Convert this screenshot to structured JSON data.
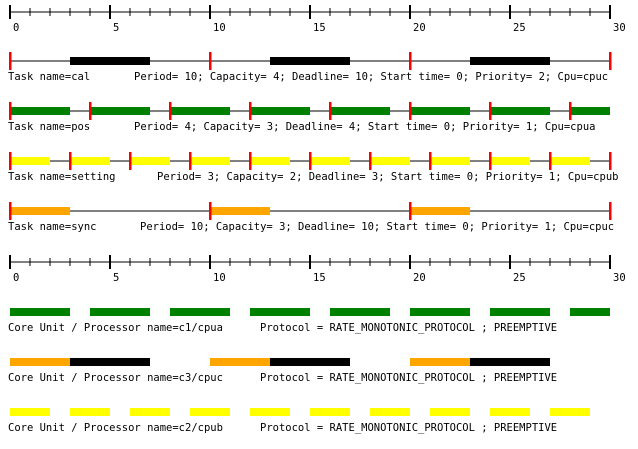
{
  "timeline": {
    "min": 0,
    "max": 30,
    "major_tick_step": 5,
    "labels": [
      "0",
      "5",
      "10",
      "15",
      "20",
      "25",
      "30"
    ]
  },
  "colors": {
    "background": "#ffffff",
    "axis": "#000000",
    "deadline_marker": "#ff0000",
    "black_bar": "#000000",
    "green_bar": "#008000",
    "yellow_bar": "#ffff00",
    "orange_bar": "#ffa500"
  },
  "tasks": [
    {
      "id": "cal",
      "name_text": "Task name=cal",
      "info_text": "Period= 10; Capacity= 4; Deadline= 10; Start time= 0; Priority= 2; Cpu=cpuc",
      "color": "black_bar",
      "segments": [
        [
          3,
          7
        ],
        [
          13,
          17
        ],
        [
          23,
          27
        ]
      ],
      "deadlines": [
        0,
        10,
        20,
        30
      ]
    },
    {
      "id": "pos",
      "name_text": "Task name=pos",
      "info_text": "Period= 4; Capacity= 3; Deadline= 4; Start time= 0; Priority= 1; Cpu=cpua",
      "color": "green_bar",
      "segments": [
        [
          0,
          3
        ],
        [
          4,
          7
        ],
        [
          8,
          11
        ],
        [
          12,
          15
        ],
        [
          16,
          19
        ],
        [
          20,
          23
        ],
        [
          24,
          27
        ],
        [
          28,
          30
        ]
      ],
      "deadlines": [
        0,
        4,
        8,
        12,
        16,
        20,
        24,
        28
      ]
    },
    {
      "id": "setting",
      "name_text": "Task name=setting",
      "info_text": "Period= 3; Capacity= 2; Deadline= 3; Start time= 0; Priority= 1; Cpu=cpub",
      "color": "yellow_bar",
      "segments": [
        [
          0,
          2
        ],
        [
          3,
          5
        ],
        [
          6,
          8
        ],
        [
          9,
          11
        ],
        [
          12,
          14
        ],
        [
          15,
          17
        ],
        [
          18,
          20
        ],
        [
          21,
          23
        ],
        [
          24,
          26
        ],
        [
          27,
          29
        ]
      ],
      "deadlines": [
        0,
        3,
        6,
        9,
        12,
        15,
        18,
        21,
        24,
        27,
        30
      ]
    },
    {
      "id": "sync",
      "name_text": "Task name=sync",
      "info_text": "Period= 10; Capacity= 3; Deadline= 10; Start time= 0; Priority= 1; Cpu=cpuc",
      "color": "orange_bar",
      "segments": [
        [
          0,
          3
        ],
        [
          10,
          13
        ],
        [
          20,
          23
        ]
      ],
      "deadlines": [
        0,
        10,
        20,
        30
      ]
    }
  ],
  "processors": [
    {
      "id": "cpua",
      "name_text": "Core Unit / Processor name=c1/cpua",
      "protocol_text": "Protocol = RATE_MONOTONIC_PROTOCOL ; PREEMPTIVE",
      "segments": [
        {
          "from": 0,
          "to": 3,
          "color": "green_bar"
        },
        {
          "from": 4,
          "to": 7,
          "color": "green_bar"
        },
        {
          "from": 8,
          "to": 11,
          "color": "green_bar"
        },
        {
          "from": 12,
          "to": 15,
          "color": "green_bar"
        },
        {
          "from": 16,
          "to": 19,
          "color": "green_bar"
        },
        {
          "from": 20,
          "to": 23,
          "color": "green_bar"
        },
        {
          "from": 24,
          "to": 27,
          "color": "green_bar"
        },
        {
          "from": 28,
          "to": 30,
          "color": "green_bar"
        }
      ]
    },
    {
      "id": "cpuc",
      "name_text": "Core Unit / Processor name=c3/cpuc",
      "protocol_text": "Protocol = RATE_MONOTONIC_PROTOCOL ; PREEMPTIVE",
      "segments": [
        {
          "from": 0,
          "to": 3,
          "color": "orange_bar"
        },
        {
          "from": 3,
          "to": 7,
          "color": "black_bar"
        },
        {
          "from": 10,
          "to": 13,
          "color": "orange_bar"
        },
        {
          "from": 13,
          "to": 17,
          "color": "black_bar"
        },
        {
          "from": 20,
          "to": 23,
          "color": "orange_bar"
        },
        {
          "from": 23,
          "to": 27,
          "color": "black_bar"
        }
      ]
    },
    {
      "id": "cpub",
      "name_text": "Core Unit / Processor name=c2/cpub",
      "protocol_text": "Protocol = RATE_MONOTONIC_PROTOCOL ; PREEMPTIVE",
      "segments": [
        {
          "from": 0,
          "to": 2,
          "color": "yellow_bar"
        },
        {
          "from": 3,
          "to": 5,
          "color": "yellow_bar"
        },
        {
          "from": 6,
          "to": 8,
          "color": "yellow_bar"
        },
        {
          "from": 9,
          "to": 11,
          "color": "yellow_bar"
        },
        {
          "from": 12,
          "to": 14,
          "color": "yellow_bar"
        },
        {
          "from": 15,
          "to": 17,
          "color": "yellow_bar"
        },
        {
          "from": 18,
          "to": 20,
          "color": "yellow_bar"
        },
        {
          "from": 21,
          "to": 23,
          "color": "yellow_bar"
        },
        {
          "from": 24,
          "to": 26,
          "color": "yellow_bar"
        },
        {
          "from": 27,
          "to": 29,
          "color": "yellow_bar"
        }
      ]
    }
  ]
}
